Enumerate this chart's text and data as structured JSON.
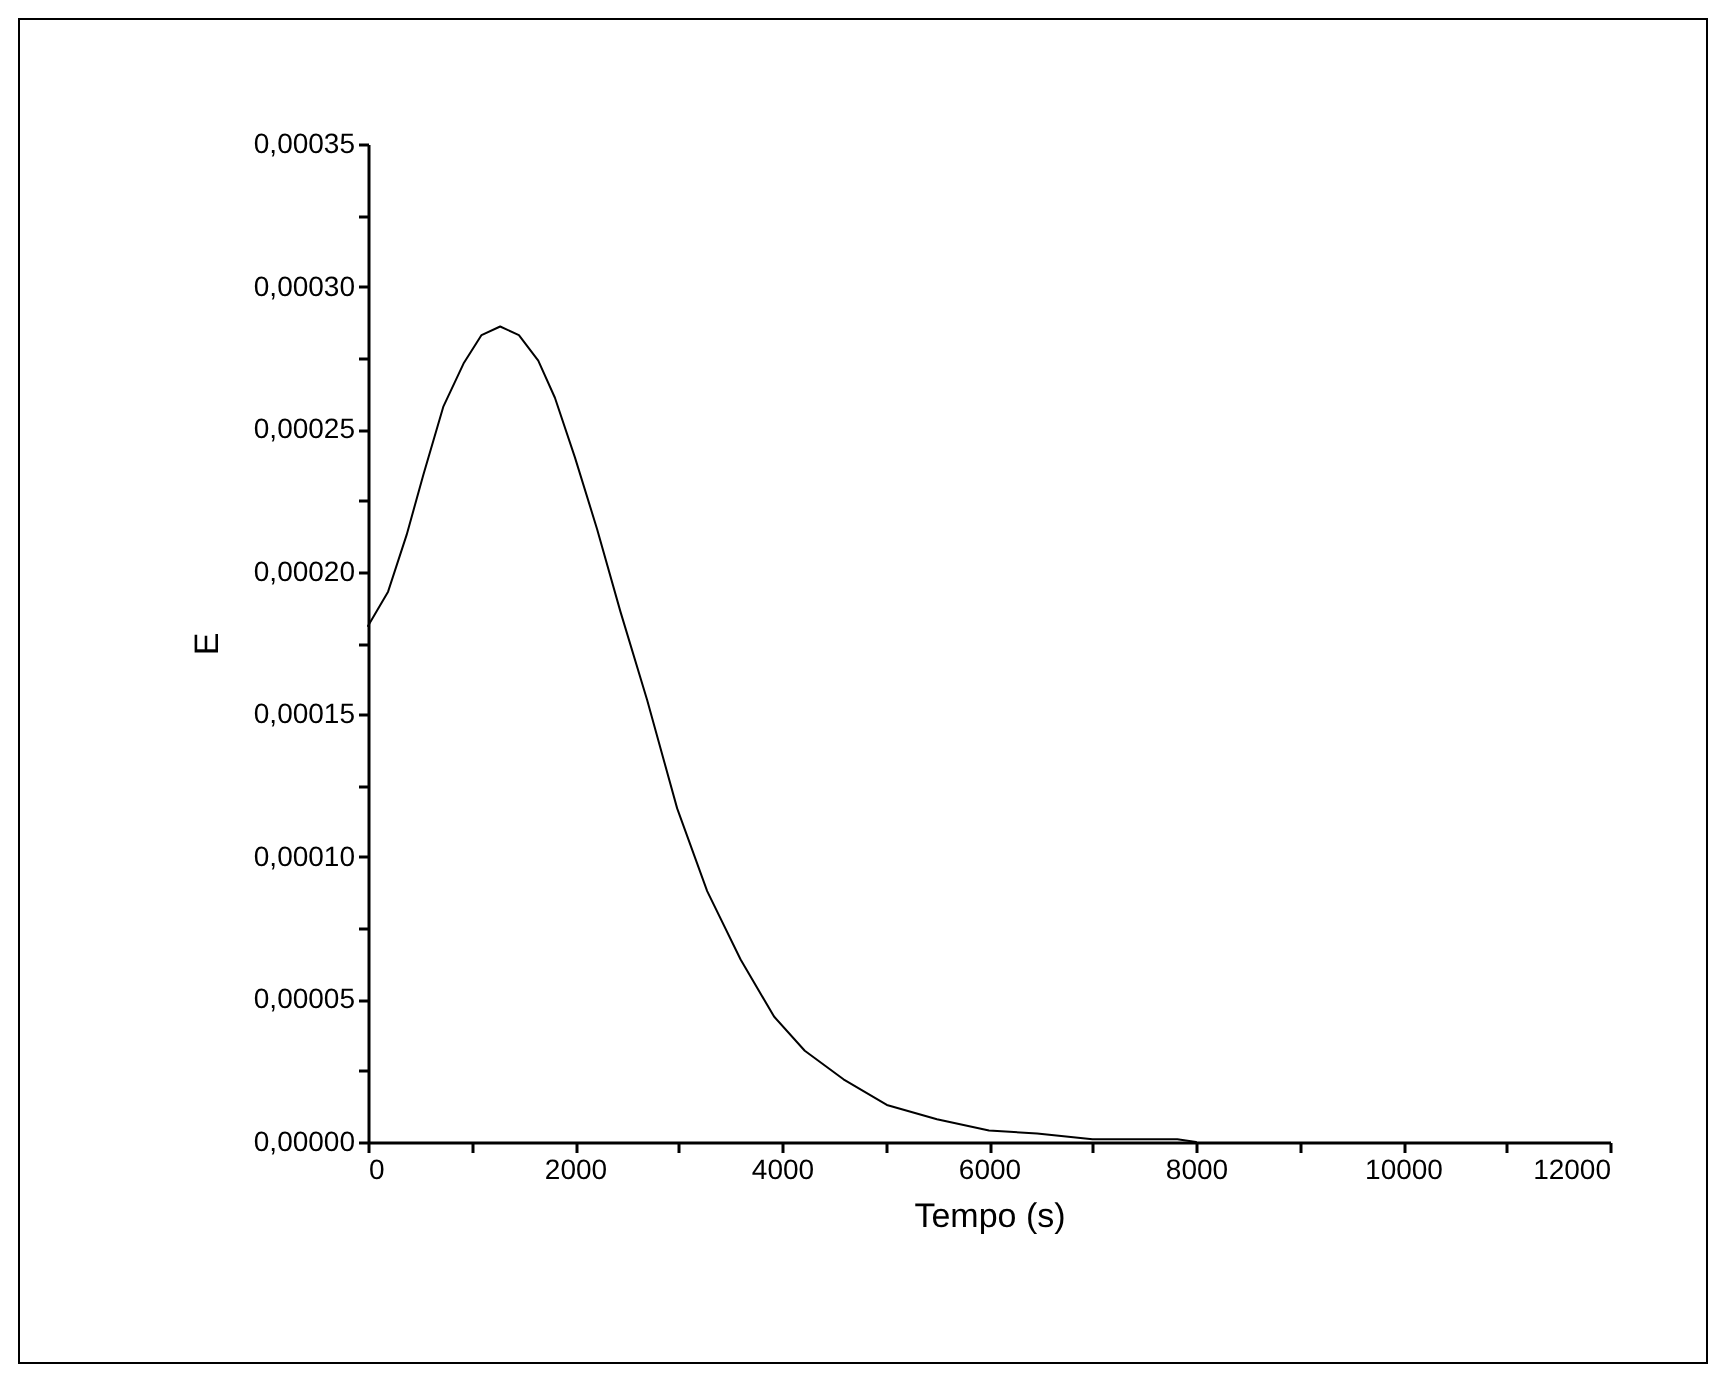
{
  "chart_data": {
    "type": "line",
    "xlabel": "Tempo (s)",
    "ylabel": "E",
    "x": [
      0,
      194,
      374,
      535,
      729,
      923,
      1097,
      1277,
      1458,
      1645,
      1806,
      2000,
      2213,
      2439,
      2697,
      2987,
      3277,
      3600,
      3923,
      4220,
      4594,
      5013,
      5497,
      6000,
      6465,
      7000,
      7820,
      8000
    ],
    "series": [
      {
        "color": "#000000",
        "values": [
          0.000181,
          0.000193,
          0.000213,
          0.000234,
          0.000258,
          0.000273,
          0.000283,
          0.000286,
          0.000283,
          0.000274,
          0.000261,
          0.00024,
          0.000215,
          0.000186,
          0.000155,
          0.000117,
          8.8e-05,
          6.4e-05,
          4.4e-05,
          3.2e-05,
          2.2e-05,
          1.3e-05,
          8e-06,
          4e-06,
          3e-06,
          1e-06,
          1e-06,
          0
        ]
      }
    ],
    "xlim": [
      0,
      12000
    ],
    "xticks": [
      0,
      {
        "value": 1000,
        "label": null
      },
      2000,
      {
        "value": 3000,
        "label": null
      },
      4000,
      {
        "value": 5000,
        "label": null
      },
      6000,
      {
        "value": 7000,
        "label": null
      },
      8000,
      {
        "value": 9000,
        "label": null
      },
      10000,
      {
        "value": 11000,
        "label": null
      },
      12000
    ],
    "ylim": [
      0,
      0.00035
    ],
    "yticks": [
      {
        "value": 0,
        "label": "0,00000"
      },
      {
        "value": 2.5e-05,
        "label": null
      },
      {
        "value": 5e-05,
        "label": "0,00005"
      },
      {
        "value": 7.5e-05,
        "label": null
      },
      {
        "value": 0.0001,
        "label": "0,00010"
      },
      {
        "value": 0.000125,
        "label": null
      },
      {
        "value": 0.00015,
        "label": "0,00015"
      },
      {
        "value": 0.000175,
        "label": null
      },
      {
        "value": 0.0002,
        "label": "0,00020"
      },
      {
        "value": 0.000225,
        "label": null
      },
      {
        "value": 0.00025,
        "label": "0,00025"
      },
      {
        "value": 0.000275,
        "label": null
      },
      {
        "value": 0.0003,
        "label": "0,00030"
      },
      {
        "value": 0.000325,
        "label": null
      },
      {
        "value": 0.00035,
        "label": "0,00035"
      }
    ],
    "grid": false,
    "marker": "none",
    "line_style": "solid"
  }
}
